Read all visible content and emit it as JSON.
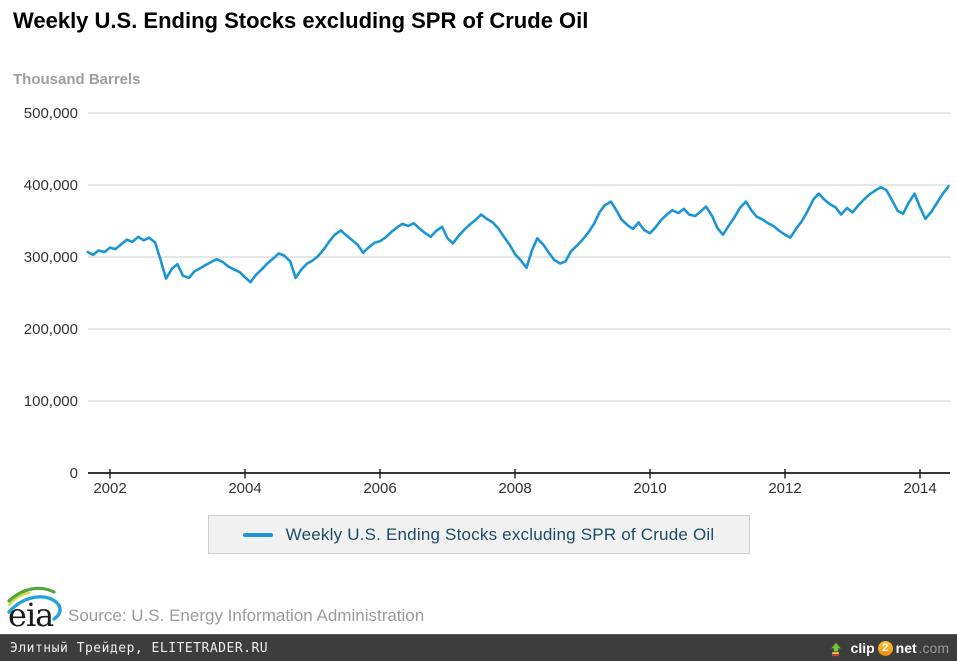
{
  "header": {
    "title": "Weekly U.S. Ending Stocks excluding SPR of Crude Oil"
  },
  "chart_data": {
    "type": "line",
    "title": "Weekly U.S. Ending Stocks excluding SPR of Crude Oil",
    "xlabel": "",
    "ylabel": "Thousand Barrels",
    "x_range": [
      2001.6,
      2014.55
    ],
    "y_range": [
      0,
      500000
    ],
    "grid": true,
    "legend_position": "bottom",
    "x_ticks": [
      {
        "value": 2002,
        "label": "2002"
      },
      {
        "value": 2004,
        "label": "2004"
      },
      {
        "value": 2006,
        "label": "2006"
      },
      {
        "value": 2008,
        "label": "2008"
      },
      {
        "value": 2010,
        "label": "2010"
      },
      {
        "value": 2012,
        "label": "2012"
      },
      {
        "value": 2014,
        "label": "2014"
      }
    ],
    "y_ticks": [
      {
        "value": 0,
        "label": "0"
      },
      {
        "value": 100000,
        "label": "100,000"
      },
      {
        "value": 200000,
        "label": "200,000"
      },
      {
        "value": 300000,
        "label": "300,000"
      },
      {
        "value": 400000,
        "label": "400,000"
      },
      {
        "value": 500000,
        "label": "500,000"
      }
    ],
    "series": [
      {
        "name": "Weekly U.S. Ending Stocks excluding SPR of Crude Oil",
        "color": "#1b95d4",
        "points": [
          [
            2001.67,
            307000
          ],
          [
            2001.75,
            303000
          ],
          [
            2001.83,
            309000
          ],
          [
            2001.92,
            307000
          ],
          [
            2002.0,
            313000
          ],
          [
            2002.08,
            311000
          ],
          [
            2002.17,
            318000
          ],
          [
            2002.25,
            324000
          ],
          [
            2002.33,
            321000
          ],
          [
            2002.42,
            328000
          ],
          [
            2002.5,
            323000
          ],
          [
            2002.58,
            327000
          ],
          [
            2002.67,
            320000
          ],
          [
            2002.75,
            296000
          ],
          [
            2002.83,
            270000
          ],
          [
            2002.92,
            284000
          ],
          [
            2003.0,
            290000
          ],
          [
            2003.08,
            274000
          ],
          [
            2003.17,
            271000
          ],
          [
            2003.25,
            280000
          ],
          [
            2003.33,
            284000
          ],
          [
            2003.42,
            289000
          ],
          [
            2003.5,
            293000
          ],
          [
            2003.58,
            297000
          ],
          [
            2003.67,
            293000
          ],
          [
            2003.75,
            287000
          ],
          [
            2003.83,
            283000
          ],
          [
            2003.92,
            279000
          ],
          [
            2004.0,
            272000
          ],
          [
            2004.08,
            265000
          ],
          [
            2004.17,
            276000
          ],
          [
            2004.25,
            283000
          ],
          [
            2004.33,
            291000
          ],
          [
            2004.42,
            298000
          ],
          [
            2004.5,
            305000
          ],
          [
            2004.58,
            302000
          ],
          [
            2004.67,
            294000
          ],
          [
            2004.75,
            271000
          ],
          [
            2004.83,
            282000
          ],
          [
            2004.92,
            291000
          ],
          [
            2005.0,
            295000
          ],
          [
            2005.08,
            301000
          ],
          [
            2005.17,
            311000
          ],
          [
            2005.25,
            322000
          ],
          [
            2005.33,
            331000
          ],
          [
            2005.42,
            337000
          ],
          [
            2005.5,
            330000
          ],
          [
            2005.58,
            324000
          ],
          [
            2005.67,
            317000
          ],
          [
            2005.75,
            306000
          ],
          [
            2005.83,
            313000
          ],
          [
            2005.92,
            320000
          ],
          [
            2006.0,
            322000
          ],
          [
            2006.08,
            327000
          ],
          [
            2006.17,
            335000
          ],
          [
            2006.25,
            341000
          ],
          [
            2006.33,
            346000
          ],
          [
            2006.42,
            343000
          ],
          [
            2006.5,
            347000
          ],
          [
            2006.58,
            340000
          ],
          [
            2006.67,
            333000
          ],
          [
            2006.75,
            328000
          ],
          [
            2006.83,
            336000
          ],
          [
            2006.92,
            342000
          ],
          [
            2007.0,
            326000
          ],
          [
            2007.08,
            319000
          ],
          [
            2007.17,
            330000
          ],
          [
            2007.25,
            338000
          ],
          [
            2007.33,
            345000
          ],
          [
            2007.42,
            352000
          ],
          [
            2007.5,
            359000
          ],
          [
            2007.58,
            353000
          ],
          [
            2007.67,
            348000
          ],
          [
            2007.75,
            340000
          ],
          [
            2007.83,
            329000
          ],
          [
            2007.92,
            317000
          ],
          [
            2008.0,
            304000
          ],
          [
            2008.08,
            296000
          ],
          [
            2008.17,
            285000
          ],
          [
            2008.25,
            309000
          ],
          [
            2008.33,
            326000
          ],
          [
            2008.42,
            317000
          ],
          [
            2008.5,
            306000
          ],
          [
            2008.58,
            296000
          ],
          [
            2008.67,
            291000
          ],
          [
            2008.75,
            294000
          ],
          [
            2008.83,
            308000
          ],
          [
            2008.92,
            316000
          ],
          [
            2009.0,
            324000
          ],
          [
            2009.08,
            333000
          ],
          [
            2009.17,
            346000
          ],
          [
            2009.25,
            362000
          ],
          [
            2009.33,
            372000
          ],
          [
            2009.42,
            377000
          ],
          [
            2009.5,
            365000
          ],
          [
            2009.58,
            352000
          ],
          [
            2009.67,
            344000
          ],
          [
            2009.75,
            339000
          ],
          [
            2009.83,
            348000
          ],
          [
            2009.92,
            337000
          ],
          [
            2010.0,
            333000
          ],
          [
            2010.08,
            341000
          ],
          [
            2010.17,
            352000
          ],
          [
            2010.25,
            359000
          ],
          [
            2010.33,
            365000
          ],
          [
            2010.42,
            361000
          ],
          [
            2010.5,
            367000
          ],
          [
            2010.58,
            359000
          ],
          [
            2010.67,
            357000
          ],
          [
            2010.75,
            363000
          ],
          [
            2010.83,
            370000
          ],
          [
            2010.92,
            357000
          ],
          [
            2011.0,
            340000
          ],
          [
            2011.08,
            331000
          ],
          [
            2011.17,
            344000
          ],
          [
            2011.25,
            355000
          ],
          [
            2011.33,
            368000
          ],
          [
            2011.42,
            377000
          ],
          [
            2011.5,
            365000
          ],
          [
            2011.58,
            356000
          ],
          [
            2011.67,
            352000
          ],
          [
            2011.75,
            347000
          ],
          [
            2011.83,
            343000
          ],
          [
            2011.92,
            336000
          ],
          [
            2012.0,
            331000
          ],
          [
            2012.08,
            327000
          ],
          [
            2012.17,
            340000
          ],
          [
            2012.25,
            350000
          ],
          [
            2012.33,
            363000
          ],
          [
            2012.42,
            380000
          ],
          [
            2012.5,
            388000
          ],
          [
            2012.58,
            380000
          ],
          [
            2012.67,
            373000
          ],
          [
            2012.75,
            369000
          ],
          [
            2012.83,
            359000
          ],
          [
            2012.92,
            368000
          ],
          [
            2013.0,
            362000
          ],
          [
            2013.08,
            371000
          ],
          [
            2013.17,
            380000
          ],
          [
            2013.25,
            387000
          ],
          [
            2013.33,
            392000
          ],
          [
            2013.42,
            397000
          ],
          [
            2013.5,
            393000
          ],
          [
            2013.58,
            380000
          ],
          [
            2013.67,
            364000
          ],
          [
            2013.75,
            360000
          ],
          [
            2013.83,
            375000
          ],
          [
            2013.92,
            388000
          ],
          [
            2014.0,
            369000
          ],
          [
            2014.08,
            353000
          ],
          [
            2014.17,
            363000
          ],
          [
            2014.25,
            375000
          ],
          [
            2014.33,
            387000
          ],
          [
            2014.42,
            398000
          ]
        ]
      }
    ]
  },
  "legend": {
    "label": "Weekly U.S. Ending Stocks excluding SPR of Crude Oil",
    "swatch_color": "#1b95d4"
  },
  "footer": {
    "eia_logo_text": "eia",
    "source_text": "Source: U.S. Energy Information Administration"
  },
  "bottom_bar": {
    "watermark_text": "Элитный Трейдер, ELITETRADER.RU",
    "clip2net": {
      "prefix": "clip",
      "digit": "2",
      "suffix": "net",
      "tld": ".com"
    }
  },
  "colors": {
    "line": "#1b95d4",
    "gridline": "#cccccc",
    "axis": "#1a1a1a",
    "legend_text": "#1d4d66",
    "muted_gray": "#9b9b9b",
    "bottom_bar_bg": "#3d3d3d",
    "clip2net_orange": "#ef8909"
  }
}
